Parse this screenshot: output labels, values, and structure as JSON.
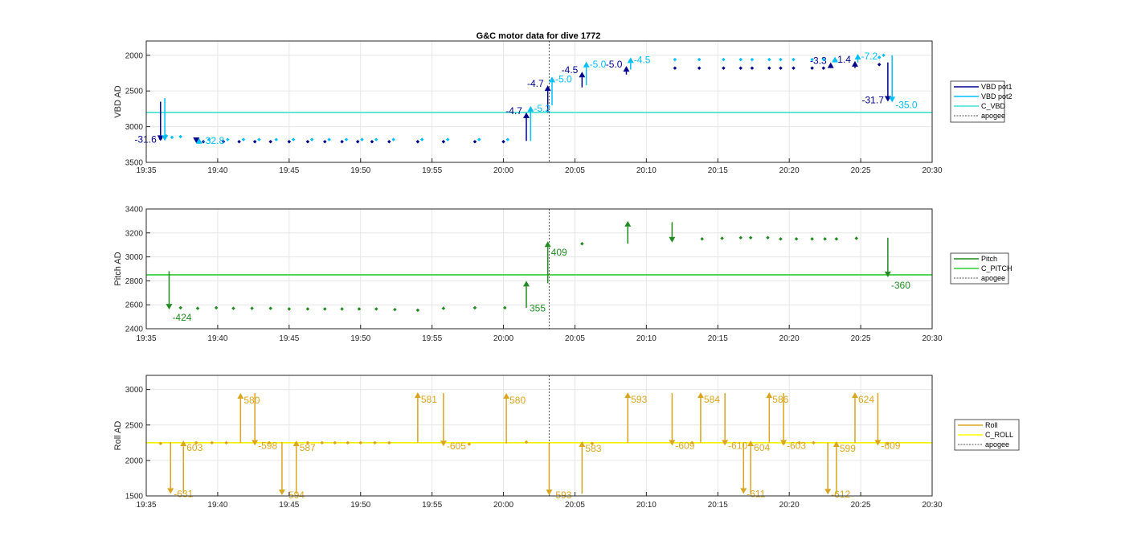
{
  "title": "G&C motor data for dive 1772",
  "xticks": [
    "19:35",
    "19:40",
    "19:45",
    "19:50",
    "19:55",
    "20:00",
    "20:05",
    "20:10",
    "20:15",
    "20:20",
    "20:25",
    "20:30"
  ],
  "apogee_time": "20:03.2",
  "chart_data": [
    {
      "type": "scatter",
      "id": "vbd",
      "ylabel": "VBD AD",
      "ylim": [
        3500,
        1800
      ],
      "yreverse": true,
      "yticks": [
        2000,
        2500,
        3000,
        3500
      ],
      "xlim": [
        "19:35",
        "20:30"
      ],
      "grid": true,
      "legend": {
        "placement": "right",
        "entries": [
          {
            "name": "VBD pot1",
            "color": "#00008b",
            "style": "solid"
          },
          {
            "name": "VBD pot2",
            "color": "#00bfff",
            "style": "solid"
          },
          {
            "name": "C_VBD",
            "color": "#40e0d0",
            "style": "solid"
          },
          {
            "name": "apogee",
            "color": "#555555",
            "style": "dotted"
          }
        ]
      },
      "hlines": [
        {
          "name": "C_VBD",
          "y": 2800,
          "color": "#40e0d0"
        }
      ],
      "series": [
        {
          "name": "VBD pot1",
          "color": "#00008b",
          "points": [
            [
              "19:36.0",
              3170
            ],
            [
              "19:39.0",
              3210
            ],
            [
              "19:40.4",
              3210
            ],
            [
              "19:41.5",
              3210
            ],
            [
              "19:42.6",
              3210
            ],
            [
              "19:43.7",
              3210
            ],
            [
              "19:45.0",
              3210
            ],
            [
              "19:46.3",
              3210
            ],
            [
              "19:47.5",
              3210
            ],
            [
              "19:48.7",
              3210
            ],
            [
              "19:49.8",
              3210
            ],
            [
              "19:50.8",
              3210
            ],
            [
              "19:52.0",
              3210
            ],
            [
              "19:54.0",
              3210
            ],
            [
              "19:55.8",
              3210
            ],
            [
              "19:58.0",
              3210
            ],
            [
              "20:00.0",
              3210
            ],
            [
              "20:12.0",
              2180
            ],
            [
              "20:13.7",
              2180
            ],
            [
              "20:15.4",
              2180
            ],
            [
              "20:16.6",
              2180
            ],
            [
              "20:17.4",
              2180
            ],
            [
              "20:18.6",
              2180
            ],
            [
              "20:19.4",
              2180
            ],
            [
              "20:20.3",
              2180
            ],
            [
              "20:21.6",
              2180
            ],
            [
              "20:22.4",
              2180
            ],
            [
              "20:26.3",
              2130
            ]
          ],
          "arrows": [
            {
              "t": "19:36.0",
              "from": 2650,
              "to": 3200,
              "label": "-31.6"
            },
            {
              "t": "19:38.5",
              "from": 3180,
              "to": 3230,
              "label": ""
            },
            {
              "t": "20:01.6",
              "from": 3200,
              "to": 2800,
              "label": "-4.7"
            },
            {
              "t": "20:03.1",
              "from": 2800,
              "to": 2420,
              "label": "-4.7"
            },
            {
              "t": "20:05.5",
              "from": 2450,
              "to": 2230,
              "label": "-4.5"
            },
            {
              "t": "20:08.6",
              "from": 2270,
              "to": 2150,
              "label": "-5.0"
            },
            {
              "t": "20:22.9",
              "from": 2180,
              "to": 2100,
              "label": "-3.3"
            },
            {
              "t": "20:24.6",
              "from": 2180,
              "to": 2080,
              "label": "-1.4"
            },
            {
              "t": "20:26.9",
              "from": 2100,
              "to": 2650,
              "label": "-31.7"
            }
          ]
        },
        {
          "name": "VBD pot2",
          "color": "#00bfff",
          "points": [
            [
              "19:36.4",
              3130
            ],
            [
              "19:36.8",
              3150
            ],
            [
              "19:37.4",
              3140
            ],
            [
              "19:39.4",
              3180
            ],
            [
              "19:40.7",
              3180
            ],
            [
              "19:41.8",
              3180
            ],
            [
              "19:42.9",
              3180
            ],
            [
              "19:44.1",
              3180
            ],
            [
              "19:45.3",
              3180
            ],
            [
              "19:46.6",
              3180
            ],
            [
              "19:47.8",
              3180
            ],
            [
              "19:49.0",
              3180
            ],
            [
              "19:50.1",
              3180
            ],
            [
              "19:51.1",
              3180
            ],
            [
              "19:52.3",
              3180
            ],
            [
              "19:54.3",
              3180
            ],
            [
              "19:56.1",
              3180
            ],
            [
              "19:58.3",
              3180
            ],
            [
              "20:00.3",
              3180
            ],
            [
              "20:12.0",
              2060
            ],
            [
              "20:13.7",
              2060
            ],
            [
              "20:15.4",
              2060
            ],
            [
              "20:16.6",
              2060
            ],
            [
              "20:17.4",
              2060
            ],
            [
              "20:18.6",
              2060
            ],
            [
              "20:19.4",
              2060
            ],
            [
              "20:20.3",
              2060
            ],
            [
              "20:21.6",
              2060
            ],
            [
              "20:22.4",
              2060
            ],
            [
              "20:26.3",
              2030
            ],
            [
              "20:26.6",
              2000
            ]
          ],
          "arrows": [
            {
              "t": "19:36.3",
              "from": 2600,
              "to": 3200,
              "label": ""
            },
            {
              "t": "19:38.7",
              "from": 3200,
              "to": 3160,
              "label": "-32.8"
            },
            {
              "t": "20:01.9",
              "from": 3200,
              "to": 2710,
              "label": "-5.2"
            },
            {
              "t": "20:03.4",
              "from": 2700,
              "to": 2300,
              "label": "-5.0"
            },
            {
              "t": "20:05.8",
              "from": 2420,
              "to": 2090,
              "label": "-5.0"
            },
            {
              "t": "20:08.9",
              "from": 2200,
              "to": 2030,
              "label": "-4.5"
            },
            {
              "t": "20:23.2",
              "from": 2090,
              "to": 2020,
              "label": ""
            },
            {
              "t": "20:24.8",
              "from": 2100,
              "to": 1980,
              "label": "-7.2"
            },
            {
              "t": "20:27.2",
              "from": 2000,
              "to": 2660,
              "label": "-35.0"
            }
          ]
        }
      ]
    },
    {
      "type": "scatter",
      "id": "pitch",
      "ylabel": "Pitch AD",
      "ylim": [
        2400,
        3400
      ],
      "yticks": [
        2400,
        2600,
        2800,
        3000,
        3200,
        3400
      ],
      "xlim": [
        "19:35",
        "20:30"
      ],
      "grid": true,
      "legend": {
        "placement": "right",
        "entries": [
          {
            "name": "Pitch",
            "color": "#228b22",
            "style": "solid"
          },
          {
            "name": "C_PITCH",
            "color": "#32cd32",
            "style": "solid"
          },
          {
            "name": "apogee",
            "color": "#555555",
            "style": "dotted"
          }
        ]
      },
      "hlines": [
        {
          "name": "C_PITCH",
          "y": 2850,
          "color": "#32cd32"
        }
      ],
      "series": [
        {
          "name": "Pitch",
          "color": "#228b22",
          "points": [
            [
              "19:37.4",
              2575
            ],
            [
              "19:38.6",
              2570
            ],
            [
              "19:39.9",
              2575
            ],
            [
              "19:41.1",
              2570
            ],
            [
              "19:42.4",
              2570
            ],
            [
              "19:43.7",
              2570
            ],
            [
              "19:45.0",
              2565
            ],
            [
              "19:46.3",
              2565
            ],
            [
              "19:47.5",
              2565
            ],
            [
              "19:48.7",
              2565
            ],
            [
              "19:49.9",
              2565
            ],
            [
              "19:51.1",
              2565
            ],
            [
              "19:52.4",
              2560
            ],
            [
              "19:54.0",
              2555
            ],
            [
              "19:55.8",
              2570
            ],
            [
              "19:58.0",
              2575
            ],
            [
              "20:00.1",
              2575
            ],
            [
              "20:05.5",
              3110
            ],
            [
              "20:13.9",
              3150
            ],
            [
              "20:15.3",
              3155
            ],
            [
              "20:16.6",
              3160
            ],
            [
              "20:17.3",
              3160
            ],
            [
              "20:18.5",
              3160
            ],
            [
              "20:19.4",
              3150
            ],
            [
              "20:20.5",
              3150
            ],
            [
              "20:21.6",
              3150
            ],
            [
              "20:22.5",
              3150
            ],
            [
              "20:23.3",
              3150
            ],
            [
              "20:24.7",
              3155
            ]
          ],
          "arrows": [
            {
              "t": "19:36.6",
              "from": 2880,
              "to": 2560,
              "label": "-424"
            },
            {
              "t": "20:01.6",
              "from": 2575,
              "to": 2800,
              "label": "355"
            },
            {
              "t": "20:03.1",
              "from": 2780,
              "to": 3130,
              "label": "409"
            },
            {
              "t": "20:08.7",
              "from": 3110,
              "to": 3300,
              "label": ""
            },
            {
              "t": "20:11.8",
              "from": 3290,
              "to": 3120,
              "label": ""
            },
            {
              "t": "20:26.9",
              "from": 3160,
              "to": 2830,
              "label": "-360"
            }
          ]
        }
      ]
    },
    {
      "type": "scatter",
      "id": "roll",
      "ylabel": "Roll AD",
      "ylim": [
        1500,
        3200
      ],
      "yticks": [
        1500,
        2000,
        2500,
        3000
      ],
      "xlim": [
        "19:35",
        "20:30"
      ],
      "grid": true,
      "legend": {
        "placement": "right",
        "entries": [
          {
            "name": "Roll",
            "color": "#daa520",
            "style": "solid"
          },
          {
            "name": "C_ROLL",
            "color": "#ffff00",
            "style": "solid"
          },
          {
            "name": "apogee",
            "color": "#555555",
            "style": "dotted"
          }
        ]
      },
      "hlines": [
        {
          "name": "C_ROLL",
          "y": 2250,
          "color": "#f2f200"
        }
      ],
      "series": [
        {
          "name": "Roll",
          "color": "#daa520",
          "points": [
            [
              "19:36.0",
              2240
            ],
            [
              "19:38.5",
              2250
            ],
            [
              "19:39.6",
              2250
            ],
            [
              "19:40.6",
              2250
            ],
            [
              "19:43.6",
              2250
            ],
            [
              "19:46.3",
              2250
            ],
            [
              "19:47.3",
              2250
            ],
            [
              "19:48.2",
              2250
            ],
            [
              "19:49.1",
              2250
            ],
            [
              "19:50.0",
              2250
            ],
            [
              "19:51.0",
              2250
            ],
            [
              "19:52.0",
              2250
            ],
            [
              "19:57.6",
              2230
            ],
            [
              "20:01.6",
              2260
            ],
            [
              "20:06.2",
              2240
            ],
            [
              "20:13.2",
              2250
            ],
            [
              "20:19.6",
              2240
            ],
            [
              "20:20.7",
              2250
            ],
            [
              "20:21.7",
              2250
            ],
            [
              "20:26.9",
              2240
            ]
          ],
          "arrows": [
            {
              "t": "19:36.7",
              "from": 2260,
              "to": 1530,
              "label": "-631"
            },
            {
              "t": "19:37.6",
              "from": 1530,
              "to": 2280,
              "label": "603"
            },
            {
              "t": "19:41.6",
              "from": 2250,
              "to": 2950,
              "label": "580"
            },
            {
              "t": "19:42.6",
              "from": 2950,
              "to": 2210,
              "label": "-598"
            },
            {
              "t": "19:44.5",
              "from": 2260,
              "to": 1510,
              "label": "-594"
            },
            {
              "t": "19:45.5",
              "from": 1530,
              "to": 2280,
              "label": "587"
            },
            {
              "t": "19:54.0",
              "from": 2250,
              "to": 2960,
              "label": "581"
            },
            {
              "t": "19:55.8",
              "from": 2950,
              "to": 2200,
              "label": "-605"
            },
            {
              "t": "20:00.2",
              "from": 2240,
              "to": 2950,
              "label": "580"
            },
            {
              "t": "20:03.2",
              "from": 2240,
              "to": 1510,
              "label": "-593"
            },
            {
              "t": "20:05.5",
              "from": 1530,
              "to": 2270,
              "label": "583"
            },
            {
              "t": "20:08.7",
              "from": 2250,
              "to": 2960,
              "label": "593"
            },
            {
              "t": "20:11.8",
              "from": 2950,
              "to": 2210,
              "label": "-609"
            },
            {
              "t": "20:13.8",
              "from": 2250,
              "to": 2960,
              "label": "584"
            },
            {
              "t": "20:15.5",
              "from": 2950,
              "to": 2210,
              "label": "-610"
            },
            {
              "t": "20:16.8",
              "from": 2250,
              "to": 1530,
              "label": "-611"
            },
            {
              "t": "20:17.3",
              "from": 1530,
              "to": 2280,
              "label": "604"
            },
            {
              "t": "20:18.6",
              "from": 2250,
              "to": 2960,
              "label": "586"
            },
            {
              "t": "20:19.6",
              "from": 2950,
              "to": 2210,
              "label": "-603"
            },
            {
              "t": "20:22.7",
              "from": 2250,
              "to": 1520,
              "label": "-612"
            },
            {
              "t": "20:23.3",
              "from": 1530,
              "to": 2270,
              "label": "599"
            },
            {
              "t": "20:24.6",
              "from": 2250,
              "to": 2960,
              "label": "624"
            },
            {
              "t": "20:26.2",
              "from": 2950,
              "to": 2210,
              "label": "-609"
            }
          ]
        }
      ]
    }
  ]
}
